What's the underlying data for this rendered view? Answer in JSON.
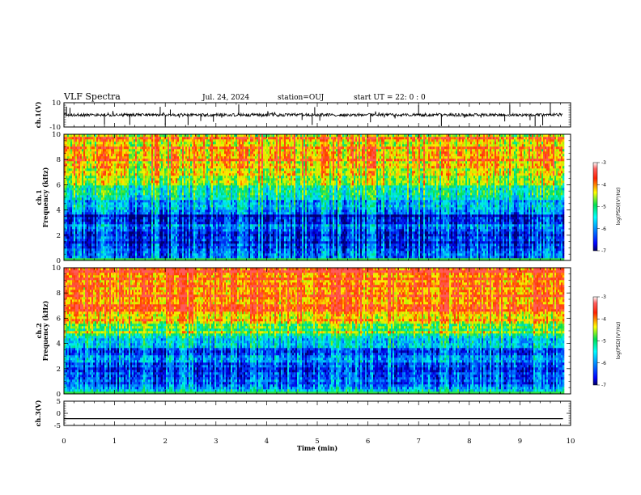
{
  "header": {
    "title": "VLF Spectra",
    "date": "Jul. 24, 2024",
    "station": "station=OUJ",
    "start": "start UT =  22: 0  : 0"
  },
  "chart_data": [
    {
      "type": "line",
      "name": "ch1-waveform",
      "ylabel": "ch.1(V)",
      "ylim": [
        -10,
        10
      ],
      "yticks": [
        {
          "v": 10,
          "label": "10"
        },
        {
          "v": -10,
          "label": "-10"
        }
      ],
      "baseline": 0,
      "noise_amplitude": 1.2,
      "spikes": [
        0.05,
        0.12,
        0.8,
        1.3,
        1.9,
        2.0,
        2.1,
        2.45,
        2.7,
        2.95,
        3.45,
        4.7,
        4.9,
        4.95,
        5.05,
        6.05,
        7.0,
        7.45,
        8.7,
        8.8,
        9.2,
        9.3,
        9.45,
        9.6
      ]
    },
    {
      "type": "heatmap",
      "name": "ch1-spectrogram",
      "ylabel": "ch.1 Frequency (kHz)",
      "ylim": [
        0,
        10
      ],
      "yticks": [
        0,
        2,
        4,
        6,
        8,
        10
      ],
      "xlim": [
        0,
        9.8
      ],
      "colorbar": {
        "label": "log(PSD)(V²/Hz)",
        "range": [
          -7,
          -3
        ],
        "ticks": [
          -3,
          -4,
          -5,
          -6,
          -7
        ]
      }
    },
    {
      "type": "heatmap",
      "name": "ch2-spectrogram",
      "ylabel": "ch.2 Frequency (kHz)",
      "ylim": [
        0,
        10
      ],
      "yticks": [
        0,
        2,
        4,
        6,
        8,
        10
      ],
      "xlim": [
        0,
        9.8
      ],
      "colorbar": {
        "label": "log(PSD)(V²/Hz)",
        "range": [
          -7,
          -3
        ],
        "ticks": [
          -3,
          -4,
          -5,
          -6,
          -7
        ]
      }
    },
    {
      "type": "line",
      "name": "ch3-waveform",
      "ylabel": "ch.3(V)",
      "ylim": [
        -5,
        5
      ],
      "yticks": [
        {
          "v": 5,
          "label": "5"
        },
        {
          "v": 0,
          "label": "0"
        },
        {
          "v": -5,
          "label": "-5"
        }
      ],
      "baseline": -2.2
    }
  ],
  "xaxis": {
    "label": "Time (min)",
    "xlim": [
      0,
      10
    ],
    "ticks": [
      0,
      1,
      2,
      3,
      4,
      5,
      6,
      7,
      8,
      9,
      10
    ]
  },
  "colors": {
    "axis": "#000000",
    "waveform": "#000000",
    "spectro_high": "#ff2a00",
    "spectro_low": "#0010c8"
  }
}
